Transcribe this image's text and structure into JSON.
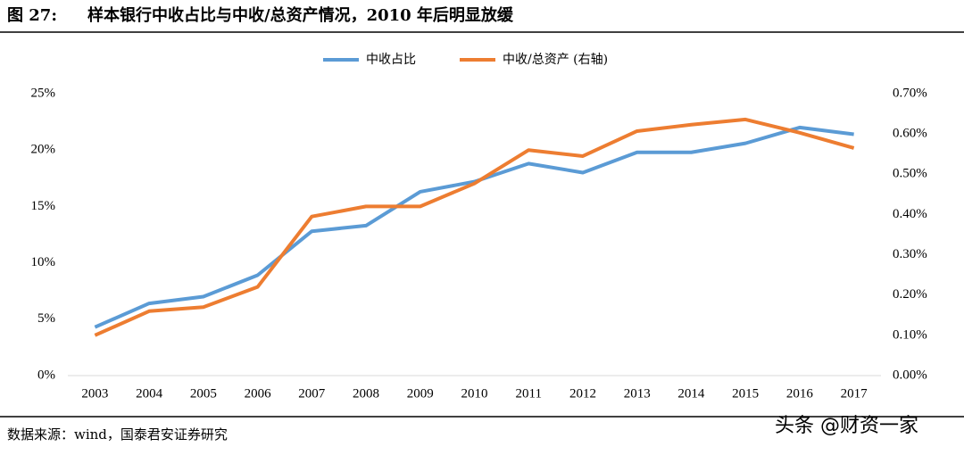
{
  "chart_data": {
    "type": "line",
    "figure_label": "图 27:",
    "title": "样本银行中收占比与中收/总资产情况，2010 年后明显放缓",
    "source": "数据来源：wind，国泰君安证券研究",
    "watermark": "头条 @财资一家",
    "categories": [
      "2003",
      "2004",
      "2005",
      "2006",
      "2007",
      "2008",
      "2009",
      "2010",
      "2011",
      "2012",
      "2013",
      "2014",
      "2015",
      "2016",
      "2017"
    ],
    "series": [
      {
        "name": "中收占比",
        "color": "#5b9bd5",
        "values": [
          4.3,
          6.4,
          7.0,
          8.9,
          12.8,
          13.3,
          16.3,
          17.2,
          18.8,
          18.0,
          19.8,
          19.8,
          20.6,
          22.0,
          21.4
        ]
      },
      {
        "name": "中收/总资产 (右轴)",
        "color": "#ed7d31",
        "axis": "y2",
        "values": [
          0.1,
          0.16,
          0.17,
          0.22,
          0.395,
          0.42,
          0.42,
          0.477,
          0.56,
          0.545,
          0.607,
          0.623,
          0.636,
          0.603,
          0.565
        ]
      }
    ],
    "ylim": [
      0,
      25
    ],
    "yticks": [
      {
        "value": 0,
        "label": "0%"
      },
      {
        "value": 5,
        "label": "5%"
      },
      {
        "value": 10,
        "label": "10%"
      },
      {
        "value": 15,
        "label": "15%"
      },
      {
        "value": 20,
        "label": "20%"
      },
      {
        "value": 25,
        "label": "25%"
      }
    ],
    "y2lim": [
      0,
      0.7
    ],
    "y2ticks": [
      {
        "value": 0,
        "label": "0.00%"
      },
      {
        "value": 0.1,
        "label": "0.10%"
      },
      {
        "value": 0.2,
        "label": "0.20%"
      },
      {
        "value": 0.3,
        "label": "0.30%"
      },
      {
        "value": 0.4,
        "label": "0.40%"
      },
      {
        "value": 0.5,
        "label": "0.50%"
      },
      {
        "value": 0.6,
        "label": "0.60%"
      },
      {
        "value": 0.7,
        "label": "0.70%"
      }
    ],
    "legend": "top"
  }
}
